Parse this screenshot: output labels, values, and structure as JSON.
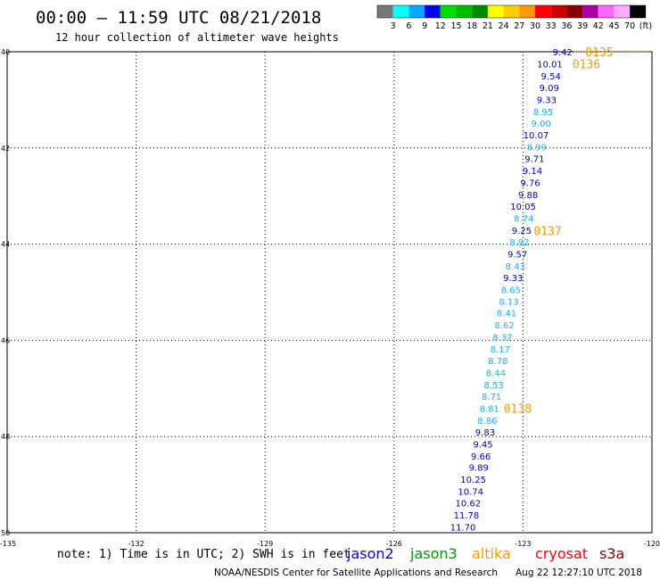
{
  "header": {
    "title": "00:00 – 11:59 UTC 08/21/2018",
    "subtitle": "12 hour collection of altimeter wave heights"
  },
  "scale": {
    "colors": [
      "#777777",
      "#00ffff",
      "#00aaff",
      "#0000ff",
      "#00dd00",
      "#00bb00",
      "#008800",
      "#ffff00",
      "#ffcc00",
      "#ff9900",
      "#ff0000",
      "#cc0000",
      "#880000",
      "#aa00aa",
      "#ff66ff",
      "#ffaaff",
      "#000000"
    ],
    "labels": [
      "3",
      "6",
      "9",
      "12",
      "15",
      "18",
      "21",
      "24",
      "27",
      "30",
      "33",
      "36",
      "39",
      "42",
      "45",
      "70",
      "(ft)"
    ]
  },
  "axes": {
    "lat_labels": [
      "40",
      "42",
      "44",
      "46",
      "48",
      "50"
    ],
    "lon_labels": [
      "-135",
      "-132",
      "-129",
      "-126",
      "-123",
      "-120"
    ]
  },
  "points": [
    {
      "v": "9.42",
      "lat": 40.0,
      "lon": -121.85,
      "c": "#0000cc"
    },
    {
      "v": "10.01",
      "lat": 40.25,
      "lon": -122.08,
      "c": "#0000cc"
    },
    {
      "v": "9.54",
      "lat": 40.5,
      "lon": -122.12,
      "c": "#0000cc"
    },
    {
      "v": "9.09",
      "lat": 40.74,
      "lon": -122.16,
      "c": "#0000cc"
    },
    {
      "v": "9.33",
      "lat": 40.99,
      "lon": -122.22,
      "c": "#0000cc"
    },
    {
      "v": "8.95",
      "lat": 41.24,
      "lon": -122.3,
      "c": "#1ab2ee"
    },
    {
      "v": "9.00",
      "lat": 41.48,
      "lon": -122.35,
      "c": "#1ab2ee"
    },
    {
      "v": "10.07",
      "lat": 41.73,
      "lon": -122.4,
      "c": "#0000cc"
    },
    {
      "v": "8.99",
      "lat": 41.98,
      "lon": -122.45,
      "c": "#1ab2ee"
    },
    {
      "v": "9.71",
      "lat": 42.22,
      "lon": -122.5,
      "c": "#0000cc"
    },
    {
      "v": "9.14",
      "lat": 42.47,
      "lon": -122.55,
      "c": "#0000cc"
    },
    {
      "v": "9.76",
      "lat": 42.72,
      "lon": -122.6,
      "c": "#0000cc"
    },
    {
      "v": "9.88",
      "lat": 42.97,
      "lon": -122.65,
      "c": "#0000cc"
    },
    {
      "v": "10.05",
      "lat": 43.21,
      "lon": -122.7,
      "c": "#0000cc"
    },
    {
      "v": "8.74",
      "lat": 43.46,
      "lon": -122.75,
      "c": "#1ab2ee"
    },
    {
      "v": "9.25",
      "lat": 43.71,
      "lon": -122.8,
      "c": "#0000cc"
    },
    {
      "v": "8.92",
      "lat": 43.95,
      "lon": -122.85,
      "c": "#1ab2ee"
    },
    {
      "v": "9.57",
      "lat": 44.2,
      "lon": -122.9,
      "c": "#0000cc"
    },
    {
      "v": "8.43",
      "lat": 44.45,
      "lon": -122.95,
      "c": "#1ab2ee"
    },
    {
      "v": "9.33",
      "lat": 44.69,
      "lon": -123.0,
      "c": "#0000cc"
    },
    {
      "v": "8.65",
      "lat": 44.94,
      "lon": -123.05,
      "c": "#1ab2ee"
    },
    {
      "v": "8.13",
      "lat": 45.19,
      "lon": -123.1,
      "c": "#1ab2ee"
    },
    {
      "v": "8.41",
      "lat": 45.43,
      "lon": -123.15,
      "c": "#1ab2ee"
    },
    {
      "v": "8.62",
      "lat": 45.68,
      "lon": -123.2,
      "c": "#1ab2ee"
    },
    {
      "v": "8.37",
      "lat": 45.93,
      "lon": -123.25,
      "c": "#1ab2ee"
    },
    {
      "v": "8.17",
      "lat": 46.18,
      "lon": -123.3,
      "c": "#1ab2ee"
    },
    {
      "v": "8.78",
      "lat": 46.42,
      "lon": -123.35,
      "c": "#1ab2ee"
    },
    {
      "v": "8.44",
      "lat": 46.67,
      "lon": -123.4,
      "c": "#1ab2ee"
    },
    {
      "v": "8.53",
      "lat": 46.92,
      "lon": -123.45,
      "c": "#1ab2ee"
    },
    {
      "v": "8.71",
      "lat": 47.16,
      "lon": -123.5,
      "c": "#1ab2ee"
    },
    {
      "v": "8.81",
      "lat": 47.41,
      "lon": -123.55,
      "c": "#1ab2ee"
    },
    {
      "v": "8.86",
      "lat": 47.66,
      "lon": -123.6,
      "c": "#1ab2ee"
    },
    {
      "v": "9.83",
      "lat": 47.9,
      "lon": -123.65,
      "c": "#0000cc"
    },
    {
      "v": "9.45",
      "lat": 48.15,
      "lon": -123.7,
      "c": "#0000cc"
    },
    {
      "v": "9.66",
      "lat": 48.4,
      "lon": -123.75,
      "c": "#0000cc"
    },
    {
      "v": "9.89",
      "lat": 48.64,
      "lon": -123.8,
      "c": "#0000cc"
    },
    {
      "v": "10.25",
      "lat": 48.89,
      "lon": -123.86,
      "c": "#0000cc"
    },
    {
      "v": "10.74",
      "lat": 49.14,
      "lon": -123.92,
      "c": "#0000cc"
    },
    {
      "v": "10.62",
      "lat": 49.38,
      "lon": -123.98,
      "c": "#0000cc"
    },
    {
      "v": "11.78",
      "lat": 49.63,
      "lon": -124.02,
      "c": "#0000cc"
    },
    {
      "v": "11.70",
      "lat": 49.88,
      "lon": -124.1,
      "c": "#0000cc"
    }
  ],
  "times": [
    {
      "t": "0135",
      "lat": 40.0,
      "lon": -120.9
    },
    {
      "t": "0136",
      "lat": 40.25,
      "lon": -121.2
    },
    {
      "t": "0137",
      "lat": 43.72,
      "lon": -122.1
    },
    {
      "t": "0138",
      "lat": 47.41,
      "lon": -122.8
    }
  ],
  "time_color": "#ff9900",
  "footer": {
    "note": "note: 1) Time is in UTC; 2) SWH is in feet",
    "credit": "NOAA/NESDIS Center for Satellite Applications and Research",
    "timestamp": "Aug 22 12:27:10 UTC 2018",
    "satellites": [
      {
        "name": "jason2",
        "color": "#0000ff"
      },
      {
        "name": "jason3",
        "color": "#009900"
      },
      {
        "name": "altika",
        "color": "#ff9900"
      },
      {
        "name": "cryosat",
        "color": "#ff0000"
      },
      {
        "name": "s3a",
        "color": "#880000"
      }
    ]
  }
}
